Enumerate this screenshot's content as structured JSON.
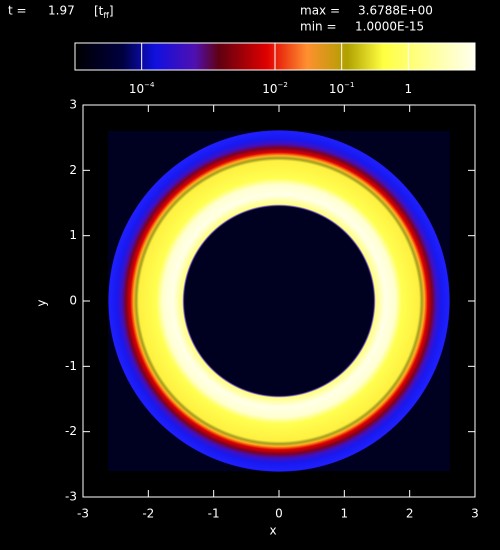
{
  "header": {
    "time_label": "t =",
    "time": "1.97",
    "time_unit": "[t",
    "time_unit_sub": "ff",
    "time_unit_close": "]",
    "max_label": "max =",
    "max": "3.6788E+00",
    "min_label": "min =",
    "min": "1.0000E-15"
  },
  "chart_data": {
    "type": "image",
    "xlabel": "x",
    "ylabel": "y",
    "xlim": [
      -3,
      3
    ],
    "ylim": [
      -3,
      3
    ],
    "xticks": [
      -3,
      -2,
      -1,
      0,
      1,
      2,
      3
    ],
    "yticks": [
      -3,
      -2,
      -1,
      0,
      1,
      2,
      3
    ],
    "colorbar": {
      "scale": "log",
      "lim": [
        1e-05,
        10
      ],
      "ticks": [
        {
          "value": 0.0001,
          "label": "10",
          "exponent": "−4"
        },
        {
          "value": 0.01,
          "label": "10",
          "exponent": "−2"
        },
        {
          "value": 0.1,
          "label": "10",
          "exponent": "−1"
        },
        {
          "value": 1,
          "label": "1"
        }
      ]
    }
  }
}
